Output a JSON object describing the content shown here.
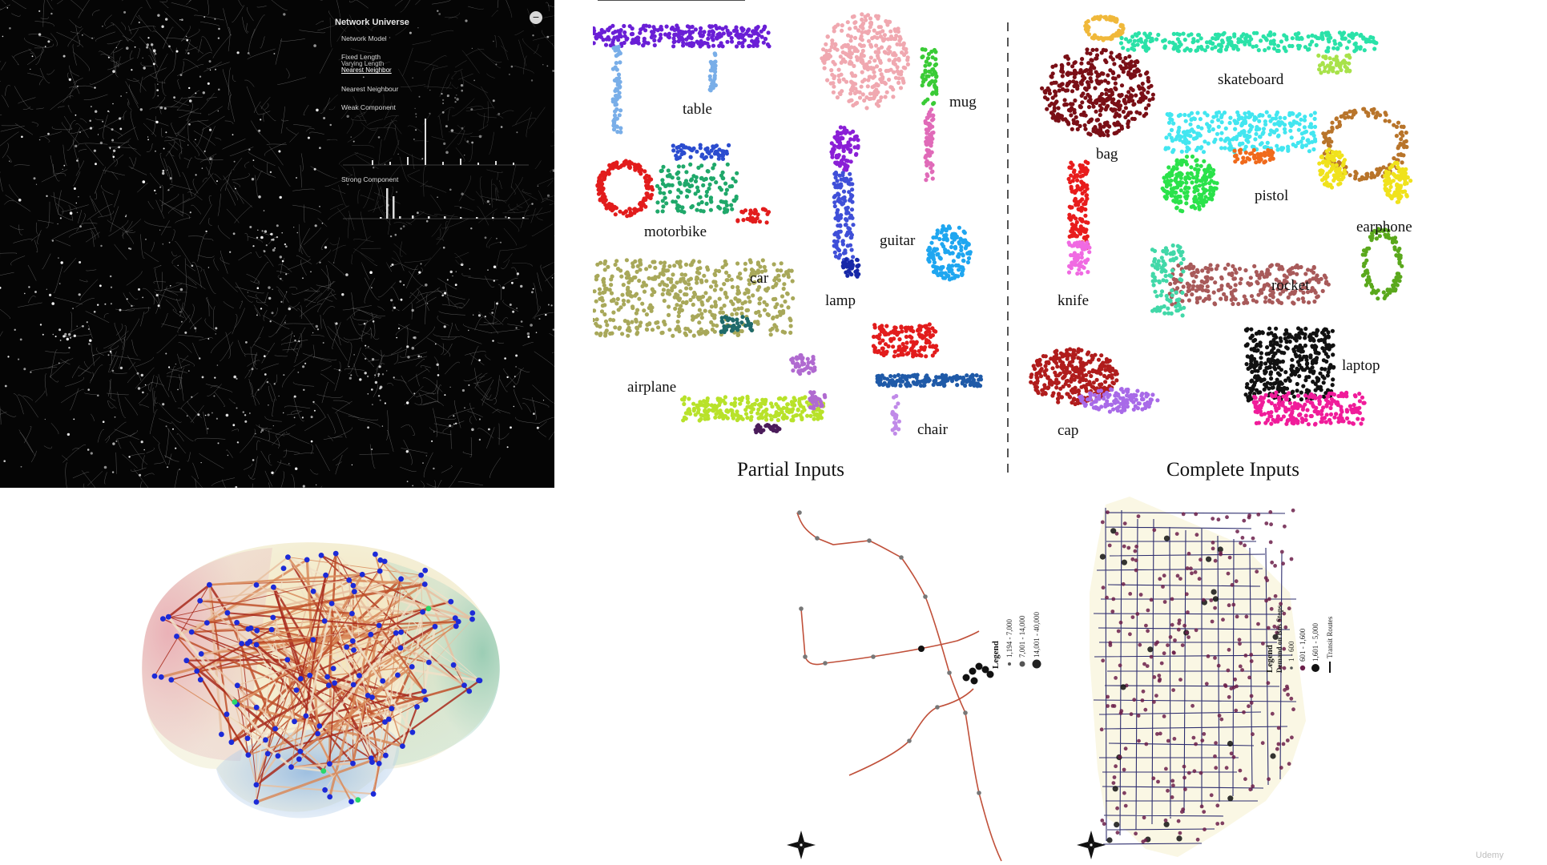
{
  "network_panel": {
    "title": "Network Universe",
    "menu_items": [
      {
        "label": "Network Model",
        "sub": []
      },
      {
        "label": "Fixed Length",
        "sub": [
          "Varying Length",
          "Nearest Neighbor"
        ]
      },
      {
        "label": "Nearest Neighbour",
        "sub": []
      },
      {
        "label": "Weak Component",
        "sub": []
      }
    ],
    "strong_component_label": "Strong Component",
    "close_icon": "close-icon"
  },
  "pointcloud_panel": {
    "partial_caption": "Partial Inputs",
    "complete_caption": "Complete Inputs",
    "partial_objects": [
      "table",
      "mug",
      "motorbike",
      "guitar",
      "car",
      "lamp",
      "airplane",
      "chair"
    ],
    "complete_objects": [
      "bag",
      "skateboard",
      "pistol",
      "earphone",
      "knife",
      "rocket",
      "cap",
      "laptop"
    ]
  },
  "transit_map": {
    "legend_title": "Legend",
    "legend_items": [
      "1,194 - 7,000",
      "7,001 - 14,000",
      "14,001 - 40,000"
    ],
    "compass_icon": "compass-rose-icon"
  },
  "chicago_map": {
    "legend_title": "Legend",
    "legend_subtitle": "Demand on Bus Stops",
    "legend_items": [
      "1 - 600",
      "601 - 1,600",
      "1,601 - 5,000"
    ],
    "legend_routes": "Transit Routes",
    "compass_icon": "compass-rose-icon"
  },
  "watermark": "Udemy",
  "colors": {
    "network_bg": "#050505",
    "rail_line": "#c0503a",
    "bus_route": "#2d2d6e",
    "bus_stop": "#6b1f4a"
  }
}
